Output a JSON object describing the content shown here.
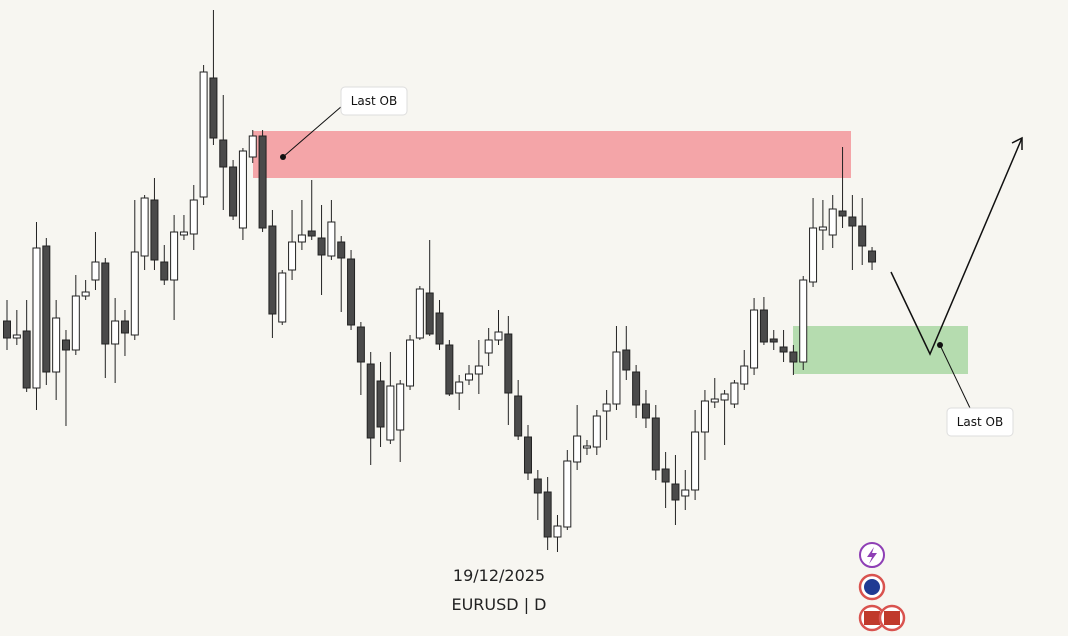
{
  "chart_data": {
    "type": "candlestick",
    "ylim": [
      0,
      636
    ],
    "open": [
      315,
      298,
      305,
      248,
      390,
      264,
      296,
      286,
      340,
      356,
      373,
      292,
      315,
      301,
      380,
      436,
      374,
      356,
      401,
      402,
      439,
      558,
      496,
      469,
      408,
      479,
      500,
      410,
      314,
      366,
      394,
      405,
      398,
      380,
      394,
      377,
      309,
      272,
      255,
      196,
      206,
      250,
      298,
      343,
      323,
      291,
      243,
      256,
      262,
      283,
      296,
      302,
      240,
      199,
      157,
      144,
      99,
      109,
      174,
      188,
      189,
      225,
      232,
      286,
      264,
      232,
      218,
      167,
      152,
      140,
      146,
      204,
      234,
      236,
      232,
      252,
      268,
      326,
      297,
      289,
      284,
      274,
      354,
      406,
      401,
      425,
      419,
      410,
      385
    ],
    "high": [
      336,
      326,
      336,
      414,
      398,
      336,
      306,
      361,
      356,
      404,
      378,
      338,
      326,
      436,
      441,
      458,
      391,
      421,
      421,
      451,
      571,
      626,
      541,
      476,
      488,
      506,
      506,
      426,
      366,
      426,
      436,
      456,
      431,
      436,
      400,
      386,
      314,
      284,
      274,
      284,
      256,
      301,
      350,
      396,
      336,
      296,
      261,
      271,
      296,
      308,
      326,
      320,
      256,
      211,
      166,
      159,
      121,
      186,
      231,
      196,
      226,
      246,
      310,
      310,
      271,
      246,
      231,
      184,
      181,
      166,
      226,
      246,
      258,
      246,
      256,
      286,
      338,
      339,
      306,
      306,
      291,
      360,
      438,
      436,
      441,
      489,
      441,
      438,
      389
    ],
    "low": [
      286,
      291,
      244,
      226,
      251,
      236,
      210,
      281,
      336,
      346,
      258,
      253,
      280,
      296,
      366,
      366,
      351,
      316,
      396,
      386,
      431,
      491,
      426,
      416,
      396,
      473,
      404,
      298,
      311,
      356,
      386,
      396,
      341,
      376,
      324,
      306,
      241,
      171,
      189,
      192,
      174,
      246,
      296,
      300,
      286,
      240,
      226,
      251,
      242,
      270,
      291,
      211,
      196,
      156,
      116,
      86,
      84,
      106,
      166,
      181,
      181,
      196,
      226,
      256,
      218,
      208,
      156,
      128,
      111,
      126,
      136,
      176,
      228,
      191,
      228,
      246,
      261,
      291,
      286,
      274,
      261,
      266,
      349,
      386,
      388,
      408,
      366,
      371,
      366
    ],
    "close": [
      298,
      301,
      248,
      388,
      264,
      318,
      286,
      340,
      344,
      374,
      292,
      315,
      303,
      384,
      438,
      376,
      356,
      404,
      404,
      436,
      564,
      498,
      469,
      420,
      485,
      500,
      408,
      322,
      363,
      394,
      401,
      400,
      381,
      414,
      378,
      311,
      274,
      198,
      209,
      250,
      252,
      296,
      347,
      302,
      292,
      242,
      254,
      262,
      270,
      296,
      304,
      243,
      200,
      163,
      143,
      99,
      110,
      175,
      200,
      190,
      220,
      232,
      284,
      266,
      231,
      218,
      166,
      154,
      136,
      146,
      204,
      235,
      237,
      242,
      253,
      270,
      326,
      294,
      294,
      284,
      274,
      356,
      408,
      409,
      427,
      420,
      410,
      390,
      374
    ],
    "up_color": "#ffffff",
    "down_color": "#4a4a4a",
    "zones": [
      {
        "top": 505,
        "bottom": 458,
        "color": "#f4a5a8"
      },
      {
        "top": 310,
        "bottom": 262,
        "color": "#b5dcaf"
      }
    ],
    "annotations": [
      "Last OB",
      "Last OB"
    ],
    "date": "19/12/2025",
    "symbol": "EURUSD | D"
  }
}
